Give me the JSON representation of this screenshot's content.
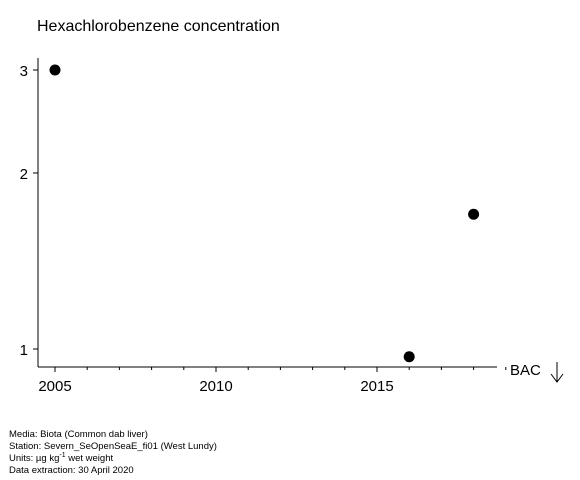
{
  "chart_data": {
    "type": "scatter",
    "title": "Hexachlorobenzene concentration",
    "xlabel": "",
    "ylabel": "",
    "xlim": [
      2005,
      2019.5
    ],
    "ylim": [
      0.95,
      3.05
    ],
    "y_scale": "log",
    "x_ticks_major": [
      2005,
      2010,
      2015
    ],
    "x_ticks_minor": [
      2006,
      2007,
      2008,
      2009,
      2011,
      2012,
      2013,
      2014,
      2016,
      2017,
      2018,
      2019
    ],
    "y_ticks": [
      1,
      2,
      3
    ],
    "points": [
      {
        "x": 2005,
        "y": 3.0
      },
      {
        "x": 2016,
        "y": 0.97
      },
      {
        "x": 2018,
        "y": 1.7
      }
    ],
    "reference": {
      "label": "BAC",
      "direction": "below range"
    },
    "grid": false
  },
  "footer": {
    "media": "Media: Biota (Common dab liver)",
    "station": "Station: Severn_SeOpenSeaE_fi01 (West Lundy)",
    "units_prefix": "Units:  µg kg",
    "units_sup": "-1",
    "units_suffix": " wet weight",
    "extraction": "Data extraction: 30 April 2020"
  }
}
